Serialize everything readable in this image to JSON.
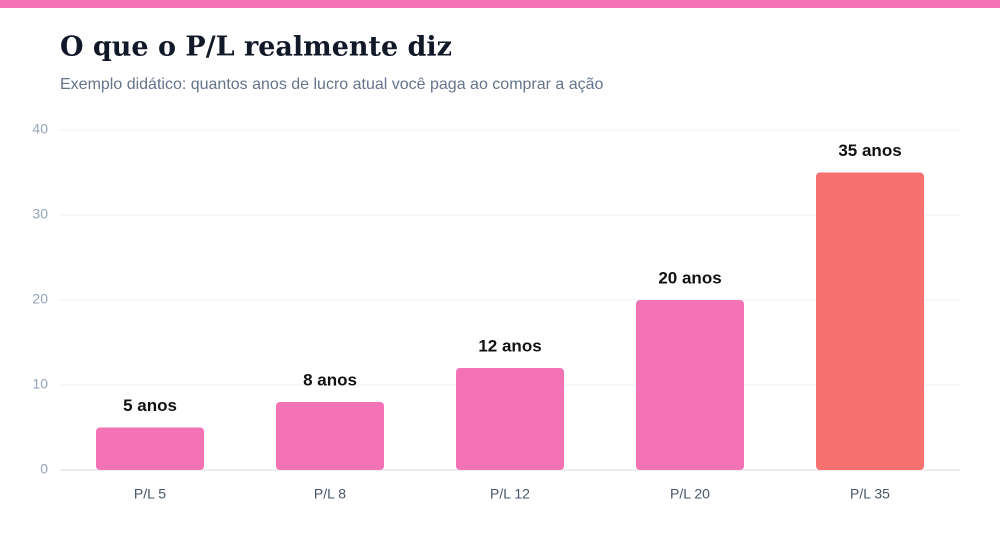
{
  "chart_data": {
    "type": "bar",
    "title": "O que o P/L realmente diz",
    "subtitle": "Exemplo didático: quantos anos de lucro atual você paga ao comprar a ação",
    "categories": [
      "P/L 5",
      "P/L 8",
      "P/L 12",
      "P/L 20",
      "P/L 35"
    ],
    "values": [
      5,
      8,
      12,
      20,
      35
    ],
    "value_labels": [
      "5 anos",
      "8 anos",
      "12 anos",
      "20 anos",
      "35 anos"
    ],
    "colors": [
      "#f472b6",
      "#f472b6",
      "#f472b6",
      "#f472b6",
      "#f87171"
    ],
    "ylim": [
      0,
      40
    ],
    "yticks": [
      0,
      10,
      20,
      30,
      40
    ],
    "grid": true
  }
}
